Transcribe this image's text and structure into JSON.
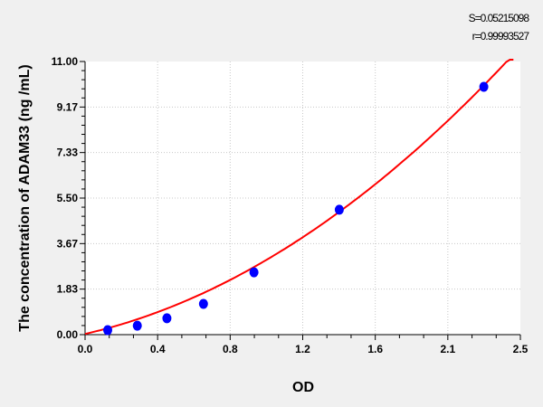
{
  "chart_data": {
    "type": "scatter",
    "title": "",
    "xlabel": "OD",
    "ylabel": "The concentration of ADAM33 (ng /mL)",
    "xlim": [
      0,
      2.5
    ],
    "ylim": [
      0,
      11
    ],
    "xticks": [
      "0.0",
      "0.4",
      "0.8",
      "1.2",
      "1.6",
      "2.1",
      "2.5"
    ],
    "yticks": [
      "0.00",
      "1.83",
      "3.67",
      "5.50",
      "7.33",
      "9.17",
      "11.00"
    ],
    "grid": true,
    "points": [
      {
        "x": 0.13,
        "y": 0.18
      },
      {
        "x": 0.3,
        "y": 0.36
      },
      {
        "x": 0.47,
        "y": 0.66
      },
      {
        "x": 0.68,
        "y": 1.24
      },
      {
        "x": 0.97,
        "y": 2.51
      },
      {
        "x": 1.46,
        "y": 5.03
      },
      {
        "x": 2.29,
        "y": 9.98
      }
    ],
    "fit_curve": {
      "type": "polynomial",
      "coefficients": [
        0.03,
        1.6,
        1.21
      ],
      "x_range": [
        0,
        2.46
      ]
    },
    "annotations": {
      "s": "S=0.05215098",
      "r": "r=0.99993527"
    },
    "colors": {
      "points": "#0000ff",
      "curve": "#ff0000",
      "grid": "#c8c8c8",
      "background": "#f0f0f0",
      "plot": "#ffffff"
    }
  }
}
